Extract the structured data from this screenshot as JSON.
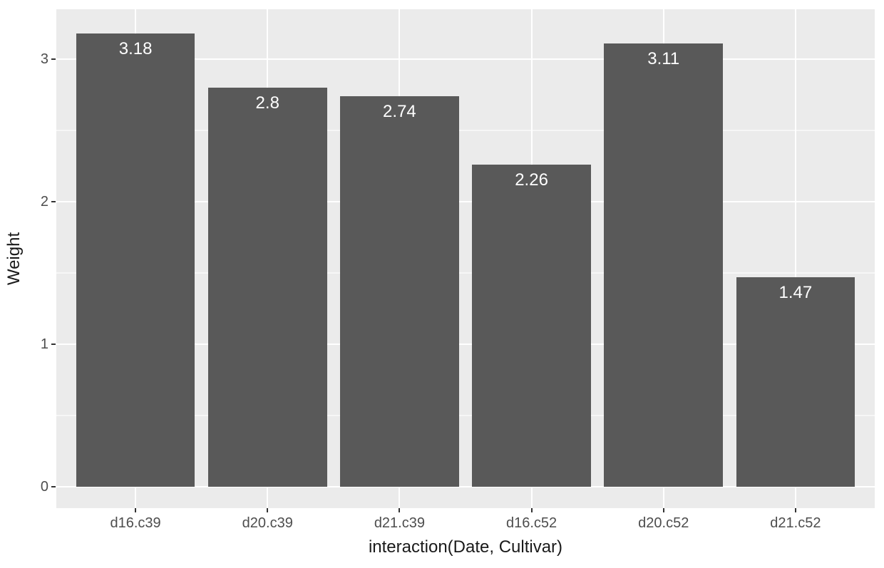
{
  "chart_data": {
    "type": "bar",
    "title": "",
    "xlabel": "interaction(Date, Cultivar)",
    "ylabel": "Weight",
    "categories": [
      "d16.c39",
      "d20.c39",
      "d21.c39",
      "d16.c52",
      "d20.c52",
      "d21.c52"
    ],
    "values": [
      3.18,
      2.8,
      2.74,
      2.26,
      3.11,
      1.47
    ],
    "bar_labels": [
      "3.18",
      "2.8",
      "2.74",
      "2.26",
      "3.11",
      "1.47"
    ],
    "y_tick_labels": [
      "0",
      "1",
      "2",
      "3"
    ],
    "y_ticks": [
      0,
      1,
      2,
      3
    ],
    "y_minor_ticks": [
      0.5,
      1.5,
      2.5
    ],
    "ylim": [
      -0.15,
      3.35
    ],
    "x_padding": 0.6,
    "bar_rel_width": 0.9,
    "grid": true,
    "legend": "none",
    "colors": {
      "bar_fill": "#595959",
      "panel_bg": "#EBEBEB",
      "grid_major": "#FFFFFF",
      "grid_minor": "#FFFFFF",
      "bar_label_text": "#FFFFFF",
      "axis_text": "#4D4D4D",
      "axis_title": "#1A1A1A",
      "tick_mark": "#333333",
      "background": "#FFFFFF"
    }
  }
}
